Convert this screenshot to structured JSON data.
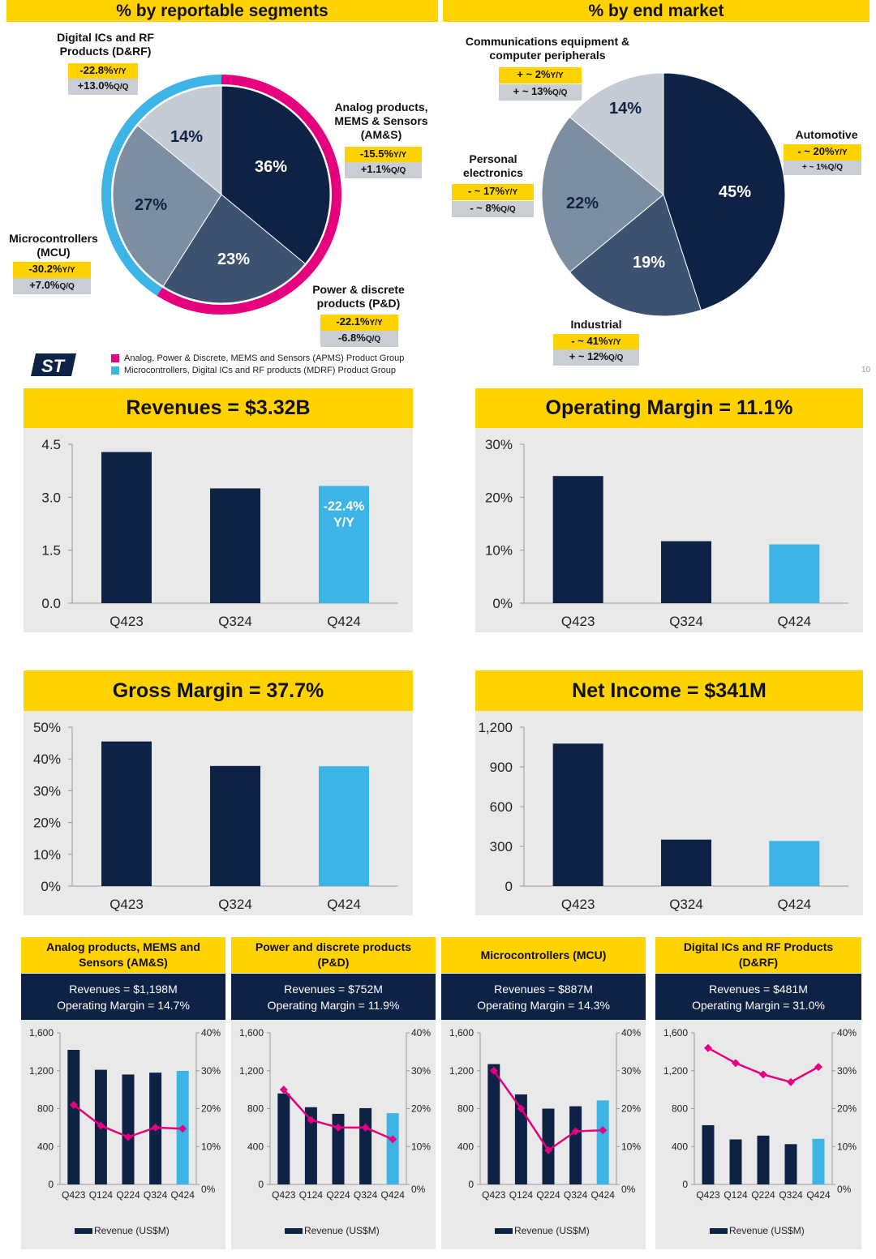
{
  "colors": {
    "navy": "#0d2245",
    "slate": "#3d5170",
    "gray": "#7e8ea2",
    "light": "#c5cbd5",
    "blue": "#3cb4e5",
    "pink": "#e6007e",
    "yellow": "#ffd200"
  },
  "pie_segments": {
    "title": "% by reportable segments",
    "slices": [
      {
        "name": "AM&S",
        "pct": "36%",
        "value": 36,
        "color": "#0d2245",
        "ring": "pink"
      },
      {
        "name": "P&D",
        "pct": "23%",
        "value": 23,
        "color": "#3d5170",
        "ring": "pink"
      },
      {
        "name": "MCU",
        "pct": "27%",
        "value": 27,
        "color": "#7e8ea2",
        "ring": "blue"
      },
      {
        "name": "D&RF",
        "pct": "14%",
        "value": 14,
        "color": "#c5cbd5",
        "ring": "blue"
      }
    ],
    "labels": {
      "drf": {
        "name": "Digital ICs and RF\nProducts (D&RF)",
        "yy": "-22.8%",
        "qq": "+13.0%"
      },
      "ams": {
        "name": "Analog products,\nMEMS & Sensors\n(AM&S)",
        "yy": "-15.5%",
        "qq": "+1.1%"
      },
      "mcu": {
        "name": "Microcontrollers\n(MCU)",
        "yy": "-30.2%",
        "qq": "+7.0%"
      },
      "pd": {
        "name": "Power & discrete\nproducts (P&D)",
        "yy": "-22.1%",
        "qq": "-6.8%"
      }
    },
    "yy_suffix": "Y/Y",
    "qq_suffix": "Q/Q",
    "legend": [
      {
        "text": "Analog, Power & Discrete, MEMS and Sensors (APMS) Product Group",
        "color": "#e6007e"
      },
      {
        "text": "Microcontrollers, Digital ICs and RF products (MDRF) Product Group",
        "color": "#3cb4e5"
      }
    ],
    "logo": "ST"
  },
  "pie_market": {
    "title": "% by end market",
    "slices": [
      {
        "name": "Automotive",
        "pct": "45%",
        "value": 45,
        "color": "#0d2245"
      },
      {
        "name": "Industrial",
        "pct": "19%",
        "value": 19,
        "color": "#3d5170"
      },
      {
        "name": "Personal electronics",
        "pct": "22%",
        "value": 22,
        "color": "#7e8ea2"
      },
      {
        "name": "Communications equipment & computer peripherals",
        "pct": "14%",
        "value": 14,
        "color": "#c5cbd5"
      }
    ],
    "labels": {
      "comm": {
        "name": "Communications equipment &\ncomputer peripherals",
        "yy": "+ ~ 2%",
        "qq": "+ ~ 13%"
      },
      "auto": {
        "name": "Automotive",
        "yy": "- ~ 20%",
        "qq": "+ ~ 1%"
      },
      "pers": {
        "name": "Personal\nelectronics",
        "yy": "- ~ 17%",
        "qq": "- ~ 8%"
      },
      "ind": {
        "name": "Industrial",
        "yy": "- ~ 41%",
        "qq": "+ ~ 12%"
      }
    },
    "page_number": "10"
  },
  "chart_data": [
    {
      "id": "revenues",
      "type": "bar",
      "title": "Revenues = $3.32B",
      "categories": [
        "Q423",
        "Q324",
        "Q424"
      ],
      "values": [
        4.28,
        3.25,
        3.32
      ],
      "yticks": [
        "0.0",
        "1.5",
        "3.0",
        "4.5"
      ],
      "ylim": [
        0,
        4.5
      ],
      "annotation": "-22.4%\nY/Y"
    },
    {
      "id": "opmargin",
      "type": "bar",
      "title": "Operating Margin = 11.1%",
      "categories": [
        "Q423",
        "Q324",
        "Q424"
      ],
      "values": [
        24,
        11.7,
        11.1
      ],
      "yticks": [
        "0%",
        "10%",
        "20%",
        "30%"
      ],
      "ylim": [
        0,
        30
      ]
    },
    {
      "id": "grossmargin",
      "type": "bar",
      "title": "Gross Margin = 37.7%",
      "categories": [
        "Q423",
        "Q324",
        "Q424"
      ],
      "values": [
        45.5,
        37.8,
        37.7
      ],
      "yticks": [
        "0%",
        "10%",
        "20%",
        "30%",
        "40%",
        "50%"
      ],
      "ylim": [
        0,
        50
      ]
    },
    {
      "id": "netincome",
      "type": "bar",
      "title": "Net Income = $341M",
      "categories": [
        "Q423",
        "Q324",
        "Q424"
      ],
      "values": [
        1076,
        351,
        341
      ],
      "yticks": [
        "0",
        "300",
        "600",
        "900",
        "1,200"
      ],
      "ylim": [
        0,
        1200
      ]
    },
    {
      "id": "ams",
      "type": "bar+line",
      "title": "Analog products, MEMS and Sensors (AM&S)",
      "revenue_text": "Revenues = $1,198M",
      "margin_text": "Operating Margin = 14.7%",
      "categories": [
        "Q423",
        "Q124",
        "Q224",
        "Q324",
        "Q424"
      ],
      "revenue": [
        1420,
        1210,
        1160,
        1180,
        1198
      ],
      "margin": [
        21,
        15.5,
        12.5,
        15,
        14.7
      ],
      "yticks_left": [
        "0",
        "400",
        "800",
        "1,200",
        "1,600"
      ],
      "yticks_right": [
        "0%",
        "10%",
        "20%",
        "30%",
        "40%"
      ],
      "ylim_left": [
        0,
        1600
      ],
      "ylim_right": [
        0,
        40
      ],
      "legend": "Revenue (US$M)"
    },
    {
      "id": "pd",
      "type": "bar+line",
      "title": "Power and discrete products (P&D)",
      "revenue_text": "Revenues = $752M",
      "margin_text": "Operating Margin = 11.9%",
      "categories": [
        "Q423",
        "Q124",
        "Q224",
        "Q324",
        "Q424"
      ],
      "revenue": [
        960,
        815,
        745,
        805,
        752
      ],
      "margin": [
        25,
        17,
        15,
        15,
        11.9
      ],
      "yticks_left": [
        "0",
        "400",
        "800",
        "1,200",
        "1,600"
      ],
      "yticks_right": [
        "0%",
        "10%",
        "20%",
        "30%",
        "40%"
      ],
      "ylim_left": [
        0,
        1600
      ],
      "ylim_right": [
        0,
        40
      ],
      "legend": "Revenue (US$M)"
    },
    {
      "id": "mcu",
      "type": "bar+line",
      "title": "Microcontrollers (MCU)",
      "revenue_text": "Revenues = $887M",
      "margin_text": "Operating Margin = 14.3%",
      "categories": [
        "Q423",
        "Q124",
        "Q224",
        "Q324",
        "Q424"
      ],
      "revenue": [
        1270,
        950,
        800,
        825,
        887
      ],
      "margin": [
        30,
        20,
        9,
        14,
        14.3
      ],
      "yticks_left": [
        "0",
        "400",
        "800",
        "1,200",
        "1,600"
      ],
      "yticks_right": [
        "0%",
        "10%",
        "20%",
        "30%",
        "40%"
      ],
      "ylim_left": [
        0,
        1600
      ],
      "ylim_right": [
        0,
        40
      ],
      "legend": "Revenue (US$M)"
    },
    {
      "id": "drf",
      "type": "bar+line",
      "title": "Digital ICs and RF Products (D&RF)",
      "revenue_text": "Revenues = $481M",
      "margin_text": "Operating Margin = 31.0%",
      "categories": [
        "Q423",
        "Q124",
        "Q224",
        "Q324",
        "Q424"
      ],
      "revenue": [
        625,
        475,
        515,
        425,
        481
      ],
      "margin": [
        36,
        32,
        29,
        27,
        31
      ],
      "yticks_left": [
        "0",
        "400",
        "800",
        "1,200",
        "1,600"
      ],
      "yticks_right": [
        "0%",
        "10%",
        "20%",
        "30%",
        "40%"
      ],
      "ylim_left": [
        0,
        1600
      ],
      "ylim_right": [
        0,
        40
      ],
      "legend": "Revenue (US$M)"
    }
  ]
}
